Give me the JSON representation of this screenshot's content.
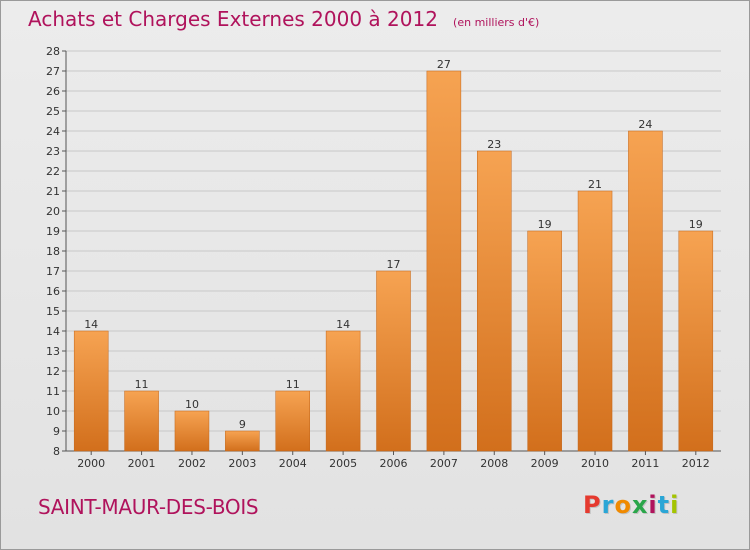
{
  "header": {
    "title": "Achats et Charges Externes 2000 à 2012",
    "unit": "(en milliers d'€)"
  },
  "footer": {
    "commune": "SAINT-MAUR-DES-BOIS",
    "brand": "Proxiti",
    "brand_colors": [
      "#e53a2f",
      "#2aa6d6",
      "#f08a00",
      "#2aa64a",
      "#b0135c",
      "#2aa6d6",
      "#a4c400"
    ]
  },
  "colors": {
    "bar_top": "#f6a352",
    "bar_bottom": "#d26f1c",
    "title": "#b0135c",
    "grid": "#c8c8c8",
    "axis_text": "#333333"
  },
  "chart_data": {
    "type": "bar",
    "categories": [
      "2000",
      "2001",
      "2002",
      "2003",
      "2004",
      "2005",
      "2006",
      "2007",
      "2008",
      "2009",
      "2010",
      "2011",
      "2012"
    ],
    "values": [
      14,
      11,
      10,
      9,
      11,
      14,
      17,
      27,
      23,
      19,
      21,
      24,
      19
    ],
    "ylim": [
      8,
      28
    ],
    "yticks": [
      8,
      9,
      10,
      11,
      12,
      13,
      14,
      15,
      16,
      17,
      18,
      19,
      20,
      21,
      22,
      23,
      24,
      25,
      26,
      27,
      28
    ],
    "data_labels": true,
    "grid": true,
    "legend": "none"
  }
}
